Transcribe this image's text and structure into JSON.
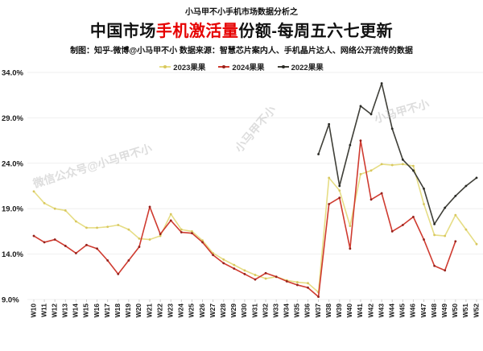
{
  "header": {
    "kicker": "小马甲不小手机市场数据分析之",
    "title_part1": "中国市场",
    "title_part2_red": "手机激活量",
    "title_part3": "份额-每周五六七更新",
    "subtitle": "制图：知乎-微博@小马甲不小  数据来源：智慧芯片案内人、手机晶片达人、网络公开流传的数据"
  },
  "watermarks": [
    "微信公众号@小马甲不小",
    "小马甲不小",
    "小马甲不小"
  ],
  "colors": {
    "title_accent": "#e60000",
    "text": "#111111",
    "gridline": "#efefef",
    "tick_text": "#1a1a1a",
    "watermark": "#bcbcbc"
  },
  "chart_data": {
    "type": "line",
    "title": "中国市场手机激活量份额-每周五六七更新",
    "xlabel": "",
    "ylabel": "",
    "unit": "%",
    "ylim": [
      9.0,
      34.0
    ],
    "grid": true,
    "legend_position": "top",
    "y_ticks": [
      {
        "value": 34,
        "label": "34.0%"
      },
      {
        "value": 29,
        "label": "29.0%"
      },
      {
        "value": 24,
        "label": "24.0%"
      },
      {
        "value": 19,
        "label": "19.0%"
      },
      {
        "value": 14,
        "label": "14.0%"
      },
      {
        "value": 9,
        "label": "9.0%"
      }
    ],
    "categories": [
      "W10",
      "W11",
      "W12",
      "W13",
      "W14",
      "W15",
      "W16",
      "W17",
      "W18",
      "W19",
      "W20",
      "W21",
      "W22",
      "W23",
      "W24",
      "W25",
      "W26",
      "W27",
      "W28",
      "W29",
      "W30",
      "W31",
      "W32",
      "W33",
      "W34",
      "W35",
      "W36",
      "W37",
      "W38",
      "W39",
      "W40",
      "W41",
      "W42",
      "W43",
      "W44",
      "W45",
      "W46",
      "W47",
      "W48",
      "W49",
      "W50",
      "W51",
      "W52"
    ],
    "series": [
      {
        "name": "2023果果",
        "color": "#e6dd85",
        "marker_color": "#d8c75e",
        "values": [
          20.9,
          19.6,
          19.0,
          18.8,
          17.6,
          16.9,
          16.9,
          17.0,
          17.2,
          16.7,
          15.7,
          15.6,
          16.0,
          18.4,
          16.7,
          16.5,
          15.5,
          14.1,
          13.4,
          12.8,
          12.2,
          11.7,
          11.3,
          11.5,
          11.1,
          10.9,
          10.8,
          9.8,
          22.4,
          21.0,
          17.1,
          22.8,
          23.2,
          23.9,
          23.8,
          23.9,
          23.7,
          19.5,
          16.1,
          16.0,
          18.3,
          16.7,
          15.1
        ]
      },
      {
        "name": "2024果果",
        "color": "#cf3b30",
        "marker_color": "#96231d",
        "values": [
          16.0,
          15.3,
          15.6,
          14.9,
          14.1,
          15.0,
          14.6,
          13.3,
          11.8,
          13.3,
          14.8,
          19.2,
          16.2,
          17.7,
          16.4,
          16.3,
          15.3,
          13.9,
          13.0,
          12.4,
          11.8,
          11.2,
          11.9,
          11.5,
          11.0,
          10.6,
          10.3,
          9.3,
          19.5,
          20.2,
          14.6,
          26.5,
          20.0,
          20.7,
          16.5,
          17.2,
          18.1,
          15.6,
          12.7,
          12.2,
          15.4,
          null,
          null
        ]
      },
      {
        "name": "2022果果",
        "color": "#3f3f38",
        "marker_color": "#2a2a25",
        "values": [
          null,
          null,
          null,
          null,
          null,
          null,
          null,
          null,
          null,
          null,
          null,
          null,
          null,
          null,
          null,
          null,
          null,
          null,
          null,
          null,
          null,
          null,
          null,
          null,
          null,
          null,
          null,
          25.0,
          28.3,
          21.5,
          26.0,
          30.3,
          29.4,
          32.8,
          27.8,
          24.4,
          23.2,
          21.2,
          17.3,
          19.1,
          20.4,
          21.5,
          22.4
        ]
      }
    ]
  }
}
